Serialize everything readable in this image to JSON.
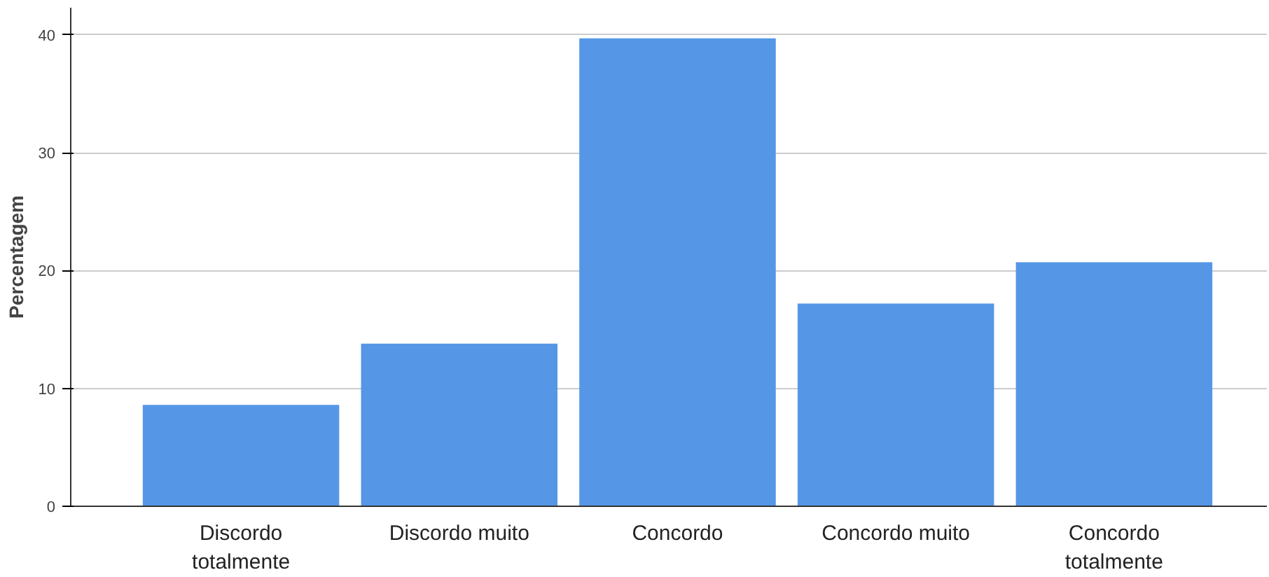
{
  "chart_data": {
    "type": "bar",
    "ylabel": "Percentagem",
    "categories": [
      "Discordo\ntotalmente",
      "Discordo muito",
      "Concordo",
      "Concordo muito",
      "Concordo\ntotalmente"
    ],
    "values": [
      8.6,
      13.8,
      39.7,
      17.2,
      20.7
    ],
    "color": "#5596e6",
    "ylim": [
      0,
      42.3
    ],
    "yticks": [
      0,
      10,
      20,
      30,
      40
    ],
    "grid": "y"
  }
}
